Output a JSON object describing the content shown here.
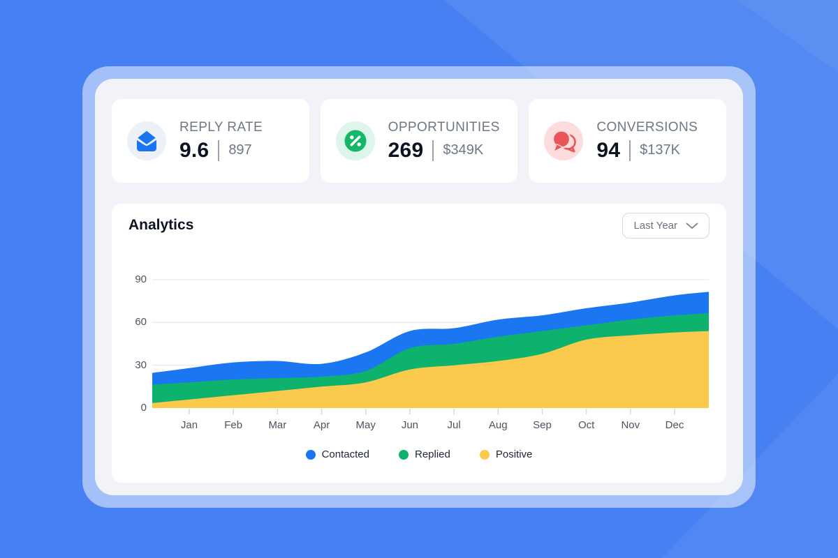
{
  "stat_cards": [
    {
      "icon": "envelope-icon",
      "label": "REPLY RATE",
      "value": "9.6",
      "secondary": "897"
    },
    {
      "icon": "percent-icon",
      "label": "OPPORTUNITIES",
      "value": "269",
      "secondary": "$349K"
    },
    {
      "icon": "chat-bubbles-icon",
      "label": "CONVERSIONS",
      "value": "94",
      "secondary": "$137K"
    }
  ],
  "analytics": {
    "title": "Analytics",
    "period_selector": {
      "value": "Last Year",
      "icon": "chevron-down-icon"
    }
  },
  "chart_data": {
    "type": "area",
    "stacked": true,
    "title": "Analytics",
    "categories": [
      "Jan",
      "Feb",
      "Mar",
      "Apr",
      "May",
      "Jun",
      "Jul",
      "Aug",
      "Sep",
      "Oct",
      "Nov",
      "Dec"
    ],
    "series": [
      {
        "name": "Contacted",
        "color": "#1b76f2",
        "values": [
          10,
          12,
          12,
          9,
          13,
          12,
          11,
          12,
          11,
          12,
          12,
          14
        ]
      },
      {
        "name": "Replied",
        "color": "#0db36c",
        "values": [
          12,
          11,
          9,
          7,
          8,
          15,
          15,
          17,
          16,
          10,
          11,
          12
        ]
      },
      {
        "name": "Positive",
        "color": "#fbc94b",
        "values": [
          6,
          9,
          12,
          15,
          18,
          27,
          30,
          33,
          38,
          48,
          51,
          53
        ]
      }
    ],
    "stack_order_bottom_to_top": [
      "Positive",
      "Replied",
      "Contacted"
    ],
    "ylim": [
      0,
      90
    ],
    "yticks": [
      0,
      30,
      60,
      90
    ],
    "grid": true,
    "legend_position": "bottom"
  },
  "colors": {
    "background": "#4680f2",
    "panel": "#f1f3f8",
    "card": "#ffffff",
    "grid_line": "#e9ebef",
    "tick": "#d6d9de",
    "axis_text": "#4b5360",
    "contacted_blue": "#1b76f2",
    "replied_green": "#0db36c",
    "positive_yellow": "#fbc94b",
    "conversions_red": "#e9565a"
  }
}
